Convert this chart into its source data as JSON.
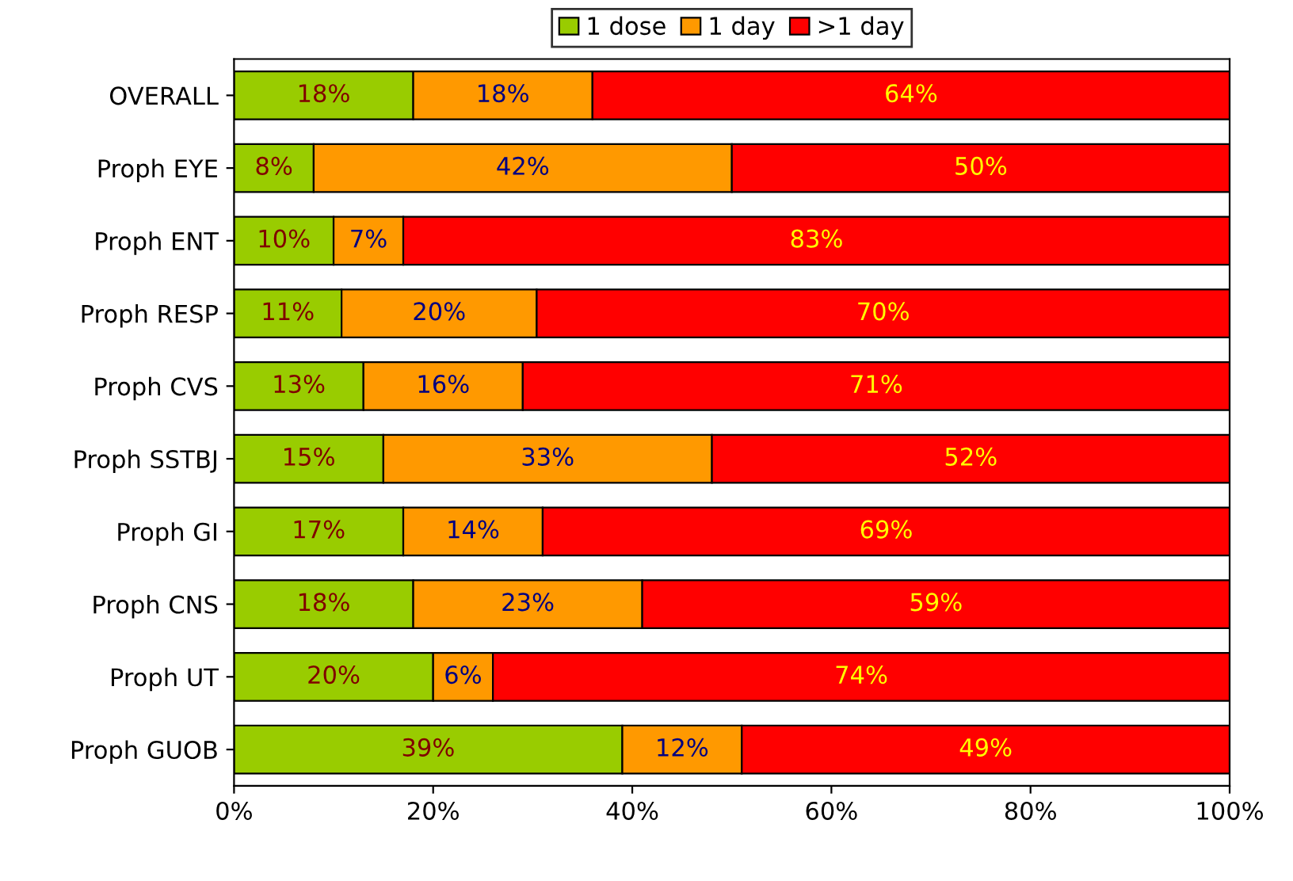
{
  "chart_data": {
    "type": "bar",
    "orientation": "horizontal",
    "stacked": true,
    "categories": [
      "OVERALL",
      "Proph EYE",
      "Proph ENT",
      "Proph RESP",
      "Proph CVS",
      "Proph SSTBJ",
      "Proph GI",
      "Proph CNS",
      "Proph UT",
      "Proph GUOB"
    ],
    "series": [
      {
        "name": "1 dose",
        "color": "#99cc00",
        "values": [
          18,
          8,
          10,
          10.8,
          13,
          15,
          17,
          18,
          20,
          39
        ],
        "value_labels": [
          "18%",
          "8%",
          "10%",
          "11%",
          "13%",
          "15%",
          "17%",
          "18%",
          "20%",
          "39%"
        ]
      },
      {
        "name": "1 day",
        "color": "#ff9900",
        "values": [
          18,
          42,
          7,
          19.6,
          16,
          33,
          14,
          23,
          6,
          12
        ],
        "value_labels": [
          "18%",
          "42%",
          "7%",
          "20%",
          "16%",
          "33%",
          "14%",
          "23%",
          "6%",
          "12%"
        ]
      },
      {
        "name": ">1 day",
        "color": "#ff0000",
        "values": [
          64,
          50,
          83,
          69.6,
          71,
          52,
          69,
          59,
          74,
          49
        ],
        "value_labels": [
          "64%",
          "50%",
          "83%",
          "70%",
          "71%",
          "52%",
          "69%",
          "59%",
          "74%",
          "49%"
        ]
      }
    ],
    "xlim": [
      0,
      100
    ],
    "xticks": [
      {
        "value": 0,
        "label": "0%"
      },
      {
        "value": 20,
        "label": "20%"
      },
      {
        "value": 40,
        "label": "40%"
      },
      {
        "value": 60,
        "label": "60%"
      },
      {
        "value": 80,
        "label": "80%"
      },
      {
        "value": 100,
        "label": "100%"
      }
    ],
    "legend": "top",
    "grid": false
  }
}
